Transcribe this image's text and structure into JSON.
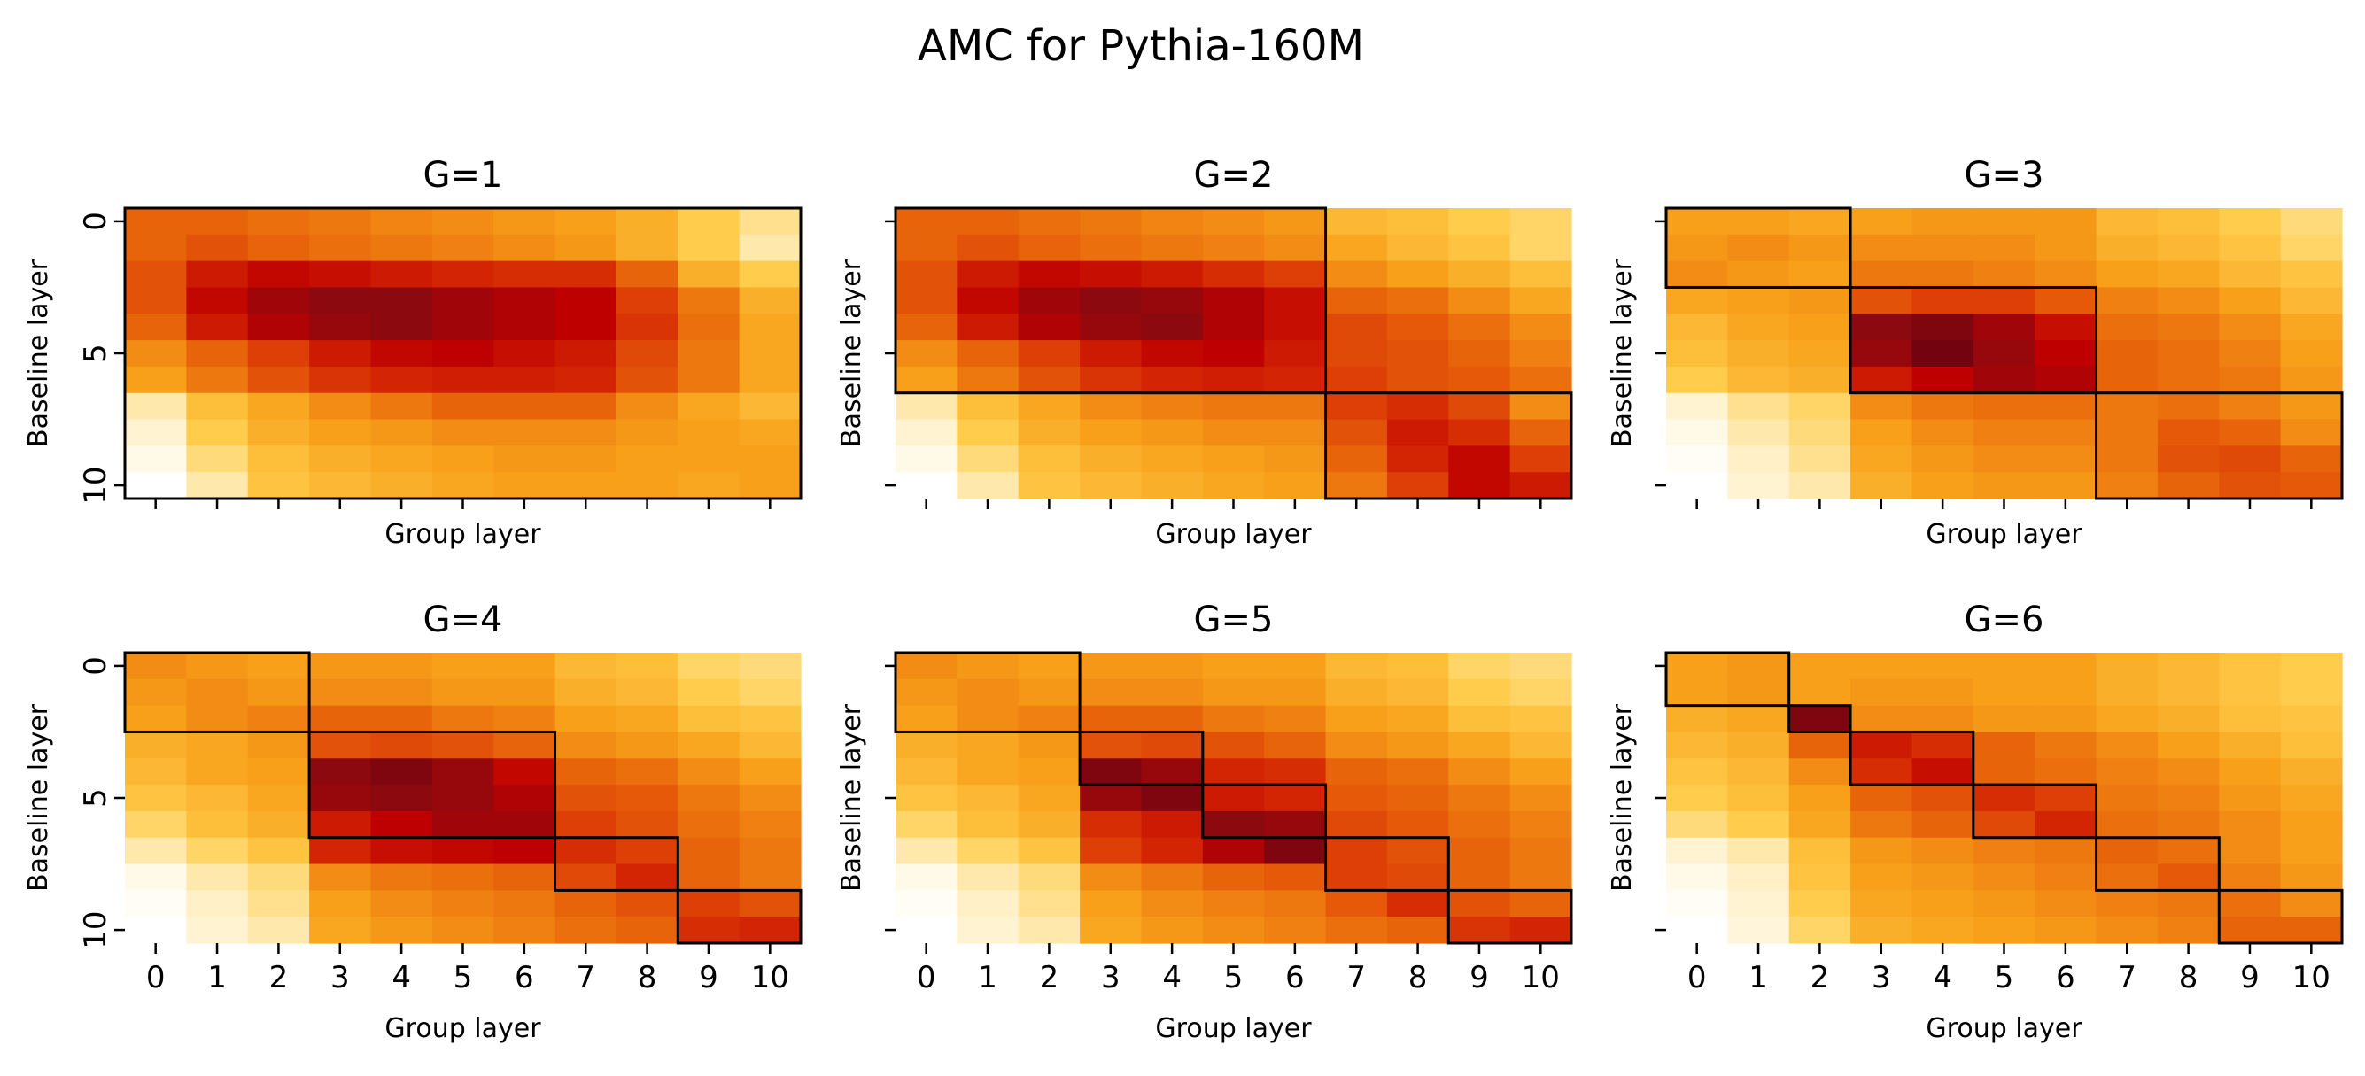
{
  "chart_data": {
    "type": "heatmap",
    "title": "AMC for Pythia-160M",
    "xlabel": "Group layer",
    "ylabel": "Baseline layer",
    "colormap": "YlOrRd-like (white → yellow → orange → red → dark red)",
    "value_range": [
      0,
      1
    ],
    "x_ticks": [
      "0",
      "1",
      "2",
      "3",
      "4",
      "5",
      "6",
      "7",
      "8",
      "9",
      "10"
    ],
    "y_ticks": [
      "0",
      "5",
      "10"
    ],
    "grid": false,
    "panels": [
      {
        "title": "G=1",
        "show_x_ticklabels": false,
        "group_boundaries": [
          [
            0,
            10
          ]
        ],
        "values": [
          [
            0.55,
            0.55,
            0.52,
            0.5,
            0.47,
            0.45,
            0.42,
            0.4,
            0.35,
            0.25,
            0.18
          ],
          [
            0.55,
            0.6,
            0.55,
            0.52,
            0.5,
            0.48,
            0.45,
            0.42,
            0.35,
            0.25,
            0.15
          ],
          [
            0.6,
            0.75,
            0.8,
            0.78,
            0.75,
            0.72,
            0.7,
            0.7,
            0.55,
            0.35,
            0.25
          ],
          [
            0.6,
            0.8,
            0.88,
            0.92,
            0.92,
            0.88,
            0.85,
            0.82,
            0.65,
            0.5,
            0.35
          ],
          [
            0.55,
            0.75,
            0.85,
            0.9,
            0.92,
            0.88,
            0.85,
            0.82,
            0.68,
            0.52,
            0.38
          ],
          [
            0.45,
            0.55,
            0.65,
            0.75,
            0.8,
            0.82,
            0.78,
            0.75,
            0.62,
            0.5,
            0.38
          ],
          [
            0.4,
            0.5,
            0.6,
            0.68,
            0.72,
            0.74,
            0.74,
            0.72,
            0.6,
            0.5,
            0.38
          ],
          [
            0.15,
            0.3,
            0.38,
            0.45,
            0.5,
            0.55,
            0.55,
            0.55,
            0.45,
            0.38,
            0.32
          ],
          [
            0.1,
            0.25,
            0.35,
            0.4,
            0.42,
            0.45,
            0.45,
            0.45,
            0.42,
            0.4,
            0.38
          ],
          [
            0.05,
            0.2,
            0.3,
            0.35,
            0.38,
            0.4,
            0.42,
            0.42,
            0.4,
            0.4,
            0.4
          ],
          [
            0.0,
            0.15,
            0.28,
            0.32,
            0.35,
            0.38,
            0.4,
            0.4,
            0.4,
            0.38,
            0.4
          ]
        ]
      },
      {
        "title": "G=2",
        "show_x_ticklabels": false,
        "group_boundaries": [
          [
            0,
            6
          ],
          [
            7,
            10
          ]
        ],
        "values": [
          [
            0.55,
            0.55,
            0.52,
            0.5,
            0.47,
            0.45,
            0.42,
            0.32,
            0.3,
            0.25,
            0.22
          ],
          [
            0.55,
            0.6,
            0.55,
            0.52,
            0.5,
            0.48,
            0.45,
            0.38,
            0.32,
            0.28,
            0.22
          ],
          [
            0.6,
            0.75,
            0.8,
            0.78,
            0.75,
            0.7,
            0.65,
            0.45,
            0.4,
            0.35,
            0.3
          ],
          [
            0.6,
            0.8,
            0.88,
            0.92,
            0.9,
            0.85,
            0.78,
            0.55,
            0.52,
            0.45,
            0.38
          ],
          [
            0.55,
            0.75,
            0.85,
            0.9,
            0.92,
            0.85,
            0.78,
            0.62,
            0.58,
            0.52,
            0.45
          ],
          [
            0.45,
            0.55,
            0.65,
            0.75,
            0.8,
            0.82,
            0.75,
            0.62,
            0.6,
            0.55,
            0.48
          ],
          [
            0.4,
            0.5,
            0.6,
            0.68,
            0.72,
            0.74,
            0.72,
            0.65,
            0.6,
            0.58,
            0.52
          ],
          [
            0.15,
            0.3,
            0.38,
            0.45,
            0.48,
            0.5,
            0.5,
            0.65,
            0.7,
            0.62,
            0.45
          ],
          [
            0.1,
            0.25,
            0.35,
            0.4,
            0.42,
            0.45,
            0.45,
            0.6,
            0.75,
            0.7,
            0.55
          ],
          [
            0.05,
            0.2,
            0.3,
            0.35,
            0.38,
            0.4,
            0.42,
            0.55,
            0.72,
            0.8,
            0.65
          ],
          [
            0.0,
            0.15,
            0.28,
            0.32,
            0.35,
            0.38,
            0.4,
            0.5,
            0.65,
            0.8,
            0.75
          ]
        ]
      },
      {
        "title": "G=3",
        "show_x_ticklabels": false,
        "group_boundaries": [
          [
            0,
            2
          ],
          [
            3,
            6
          ],
          [
            7,
            10
          ]
        ],
        "values": [
          [
            0.4,
            0.4,
            0.38,
            0.4,
            0.42,
            0.42,
            0.42,
            0.32,
            0.3,
            0.25,
            0.2
          ],
          [
            0.42,
            0.45,
            0.42,
            0.45,
            0.45,
            0.45,
            0.42,
            0.35,
            0.32,
            0.28,
            0.22
          ],
          [
            0.45,
            0.42,
            0.4,
            0.5,
            0.5,
            0.48,
            0.45,
            0.4,
            0.38,
            0.32,
            0.28
          ],
          [
            0.38,
            0.4,
            0.42,
            0.6,
            0.65,
            0.65,
            0.58,
            0.48,
            0.45,
            0.4,
            0.32
          ],
          [
            0.32,
            0.38,
            0.4,
            0.92,
            0.95,
            0.88,
            0.78,
            0.52,
            0.5,
            0.45,
            0.38
          ],
          [
            0.3,
            0.35,
            0.38,
            0.9,
            0.98,
            0.9,
            0.82,
            0.55,
            0.52,
            0.48,
            0.4
          ],
          [
            0.25,
            0.32,
            0.35,
            0.75,
            0.82,
            0.88,
            0.85,
            0.55,
            0.52,
            0.5,
            0.42
          ],
          [
            0.1,
            0.18,
            0.22,
            0.45,
            0.5,
            0.52,
            0.52,
            0.5,
            0.52,
            0.48,
            0.42
          ],
          [
            0.05,
            0.15,
            0.2,
            0.4,
            0.45,
            0.48,
            0.48,
            0.5,
            0.58,
            0.55,
            0.45
          ],
          [
            0.02,
            0.12,
            0.18,
            0.38,
            0.42,
            0.45,
            0.45,
            0.5,
            0.6,
            0.62,
            0.55
          ],
          [
            0.0,
            0.1,
            0.15,
            0.35,
            0.4,
            0.42,
            0.42,
            0.48,
            0.55,
            0.6,
            0.58
          ]
        ]
      },
      {
        "title": "G=4",
        "show_x_ticklabels": true,
        "group_boundaries": [
          [
            0,
            2
          ],
          [
            3,
            6
          ],
          [
            7,
            8
          ],
          [
            9,
            10
          ]
        ],
        "values": [
          [
            0.45,
            0.42,
            0.4,
            0.42,
            0.42,
            0.4,
            0.4,
            0.32,
            0.3,
            0.22,
            0.2
          ],
          [
            0.42,
            0.45,
            0.42,
            0.45,
            0.45,
            0.42,
            0.42,
            0.35,
            0.32,
            0.25,
            0.22
          ],
          [
            0.4,
            0.45,
            0.48,
            0.55,
            0.55,
            0.5,
            0.48,
            0.4,
            0.38,
            0.3,
            0.28
          ],
          [
            0.35,
            0.38,
            0.42,
            0.6,
            0.62,
            0.6,
            0.55,
            0.45,
            0.42,
            0.38,
            0.32
          ],
          [
            0.32,
            0.38,
            0.4,
            0.92,
            0.95,
            0.9,
            0.8,
            0.55,
            0.52,
            0.45,
            0.4
          ],
          [
            0.28,
            0.32,
            0.38,
            0.9,
            0.92,
            0.9,
            0.85,
            0.6,
            0.58,
            0.5,
            0.45
          ],
          [
            0.22,
            0.3,
            0.35,
            0.75,
            0.82,
            0.88,
            0.88,
            0.65,
            0.6,
            0.52,
            0.48
          ],
          [
            0.15,
            0.22,
            0.28,
            0.72,
            0.78,
            0.8,
            0.82,
            0.7,
            0.65,
            0.55,
            0.5
          ],
          [
            0.05,
            0.15,
            0.2,
            0.45,
            0.5,
            0.52,
            0.55,
            0.62,
            0.72,
            0.55,
            0.5
          ],
          [
            0.02,
            0.12,
            0.18,
            0.4,
            0.45,
            0.48,
            0.5,
            0.55,
            0.6,
            0.65,
            0.6
          ],
          [
            0.0,
            0.1,
            0.15,
            0.38,
            0.42,
            0.45,
            0.48,
            0.52,
            0.55,
            0.7,
            0.72
          ]
        ]
      },
      {
        "title": "G=5",
        "show_x_ticklabels": true,
        "group_boundaries": [
          [
            0,
            2
          ],
          [
            3,
            4
          ],
          [
            5,
            6
          ],
          [
            7,
            8
          ],
          [
            9,
            10
          ]
        ],
        "values": [
          [
            0.45,
            0.42,
            0.4,
            0.42,
            0.42,
            0.4,
            0.4,
            0.32,
            0.3,
            0.22,
            0.2
          ],
          [
            0.42,
            0.45,
            0.42,
            0.45,
            0.45,
            0.42,
            0.42,
            0.35,
            0.32,
            0.25,
            0.22
          ],
          [
            0.4,
            0.45,
            0.48,
            0.55,
            0.55,
            0.5,
            0.48,
            0.4,
            0.38,
            0.3,
            0.28
          ],
          [
            0.35,
            0.38,
            0.42,
            0.6,
            0.62,
            0.6,
            0.55,
            0.45,
            0.42,
            0.38,
            0.32
          ],
          [
            0.32,
            0.38,
            0.4,
            0.95,
            0.9,
            0.72,
            0.7,
            0.55,
            0.52,
            0.45,
            0.4
          ],
          [
            0.28,
            0.32,
            0.38,
            0.9,
            0.95,
            0.75,
            0.72,
            0.58,
            0.55,
            0.5,
            0.45
          ],
          [
            0.22,
            0.3,
            0.35,
            0.7,
            0.75,
            0.92,
            0.9,
            0.62,
            0.58,
            0.52,
            0.48
          ],
          [
            0.15,
            0.22,
            0.28,
            0.65,
            0.72,
            0.85,
            0.95,
            0.65,
            0.6,
            0.55,
            0.5
          ],
          [
            0.05,
            0.15,
            0.2,
            0.45,
            0.5,
            0.55,
            0.58,
            0.65,
            0.62,
            0.55,
            0.5
          ],
          [
            0.02,
            0.12,
            0.18,
            0.4,
            0.45,
            0.48,
            0.5,
            0.58,
            0.7,
            0.6,
            0.55
          ],
          [
            0.0,
            0.1,
            0.15,
            0.38,
            0.42,
            0.45,
            0.48,
            0.52,
            0.55,
            0.68,
            0.72
          ]
        ]
      },
      {
        "title": "G=6",
        "show_x_ticklabels": true,
        "group_boundaries": [
          [
            0,
            1
          ],
          [
            2,
            2
          ],
          [
            3,
            4
          ],
          [
            5,
            6
          ],
          [
            7,
            8
          ],
          [
            9,
            10
          ]
        ],
        "values": [
          [
            0.4,
            0.42,
            0.4,
            0.4,
            0.4,
            0.4,
            0.4,
            0.35,
            0.32,
            0.28,
            0.25
          ],
          [
            0.4,
            0.42,
            0.4,
            0.42,
            0.42,
            0.4,
            0.4,
            0.35,
            0.32,
            0.28,
            0.25
          ],
          [
            0.35,
            0.38,
            0.95,
            0.45,
            0.45,
            0.42,
            0.42,
            0.38,
            0.35,
            0.3,
            0.28
          ],
          [
            0.32,
            0.35,
            0.55,
            0.75,
            0.7,
            0.55,
            0.5,
            0.45,
            0.4,
            0.35,
            0.3
          ],
          [
            0.28,
            0.32,
            0.45,
            0.7,
            0.78,
            0.55,
            0.52,
            0.48,
            0.45,
            0.4,
            0.35
          ],
          [
            0.25,
            0.3,
            0.4,
            0.55,
            0.6,
            0.7,
            0.65,
            0.5,
            0.48,
            0.42,
            0.38
          ],
          [
            0.2,
            0.25,
            0.38,
            0.5,
            0.55,
            0.62,
            0.72,
            0.52,
            0.5,
            0.45,
            0.4
          ],
          [
            0.1,
            0.15,
            0.3,
            0.42,
            0.45,
            0.48,
            0.5,
            0.55,
            0.52,
            0.45,
            0.4
          ],
          [
            0.05,
            0.12,
            0.28,
            0.4,
            0.42,
            0.45,
            0.48,
            0.52,
            0.58,
            0.48,
            0.42
          ],
          [
            0.02,
            0.1,
            0.25,
            0.38,
            0.4,
            0.42,
            0.45,
            0.48,
            0.5,
            0.52,
            0.45
          ],
          [
            0.0,
            0.08,
            0.22,
            0.35,
            0.38,
            0.4,
            0.42,
            0.45,
            0.48,
            0.55,
            0.55
          ]
        ]
      }
    ]
  }
}
